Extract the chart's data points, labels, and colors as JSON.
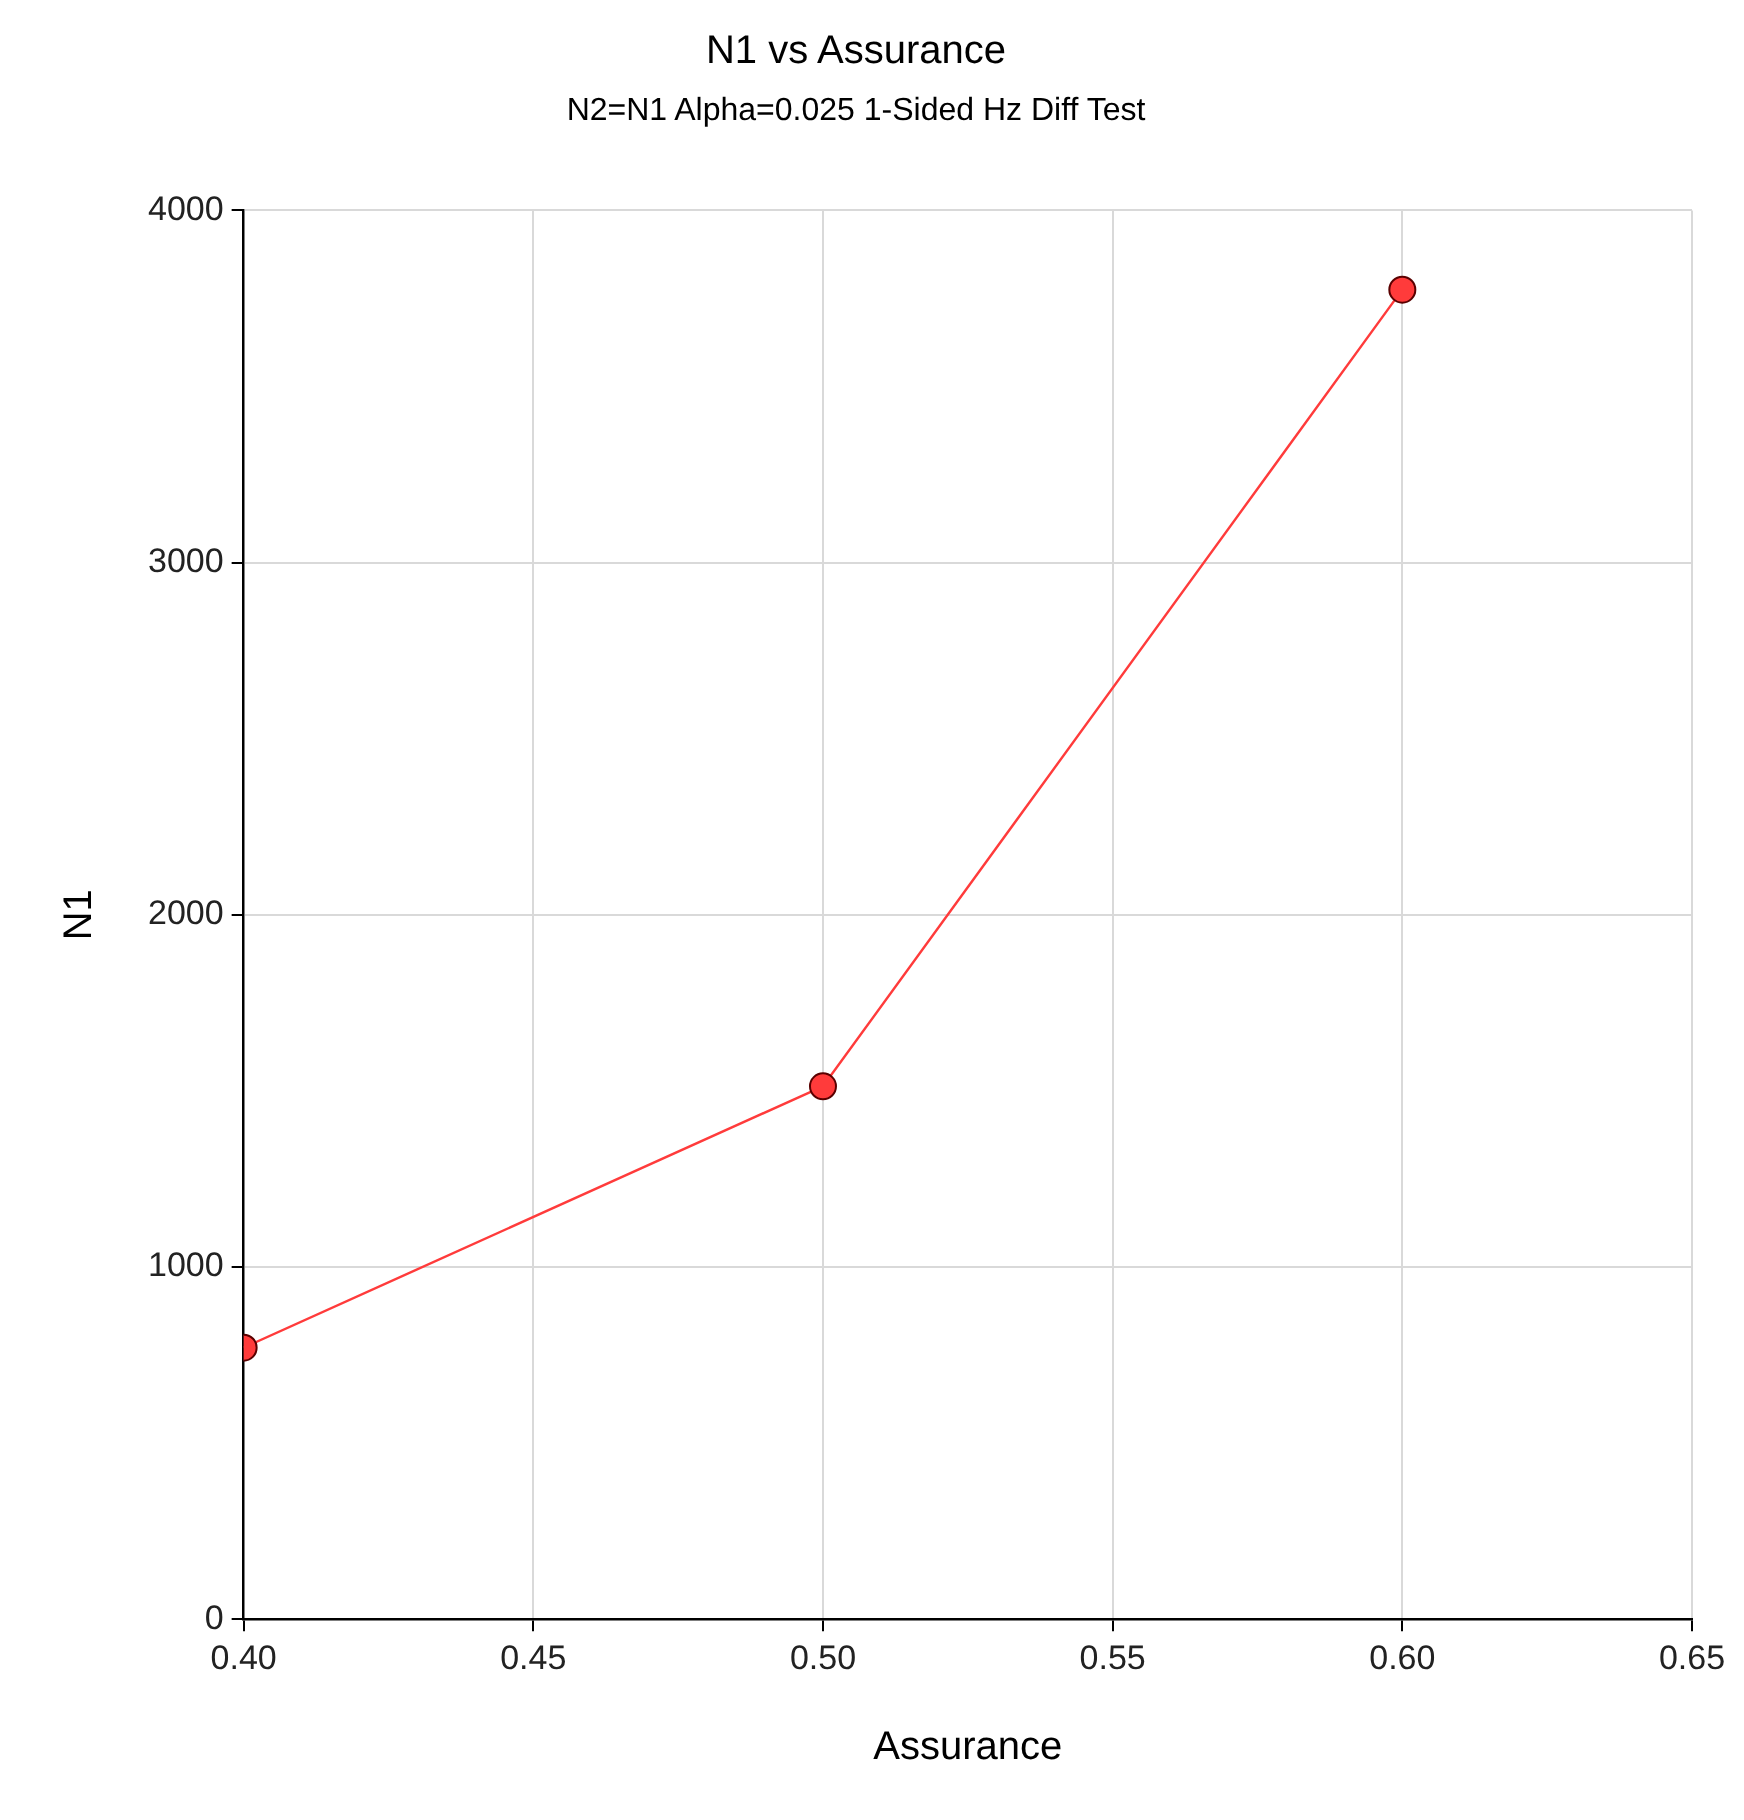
{
  "chart_data": {
    "type": "line",
    "title": "N1 vs Assurance",
    "subtitle": "N2=N1 Alpha=0.025 1-Sided Hz Diff Test",
    "xlabel": "Assurance",
    "ylabel": "N1",
    "x": [
      0.4,
      0.5,
      0.6
    ],
    "series": [
      {
        "color": "#ff3b3b",
        "values": [
          771,
          1513,
          3775
        ]
      }
    ],
    "xlim": [
      0.4,
      0.65
    ],
    "xticks": [
      {
        "value": 0.4,
        "label": "0.40"
      },
      {
        "value": 0.45,
        "label": "0.45"
      },
      {
        "value": 0.5,
        "label": "0.50"
      },
      {
        "value": 0.55,
        "label": "0.55"
      },
      {
        "value": 0.6,
        "label": "0.60"
      },
      {
        "value": 0.65,
        "label": "0.65"
      }
    ],
    "ylim": [
      0,
      4000
    ],
    "yticks": [
      0,
      1000,
      2000,
      3000,
      4000
    ],
    "grid": true,
    "legend": false,
    "marker": "circle",
    "line_style": "solid"
  }
}
